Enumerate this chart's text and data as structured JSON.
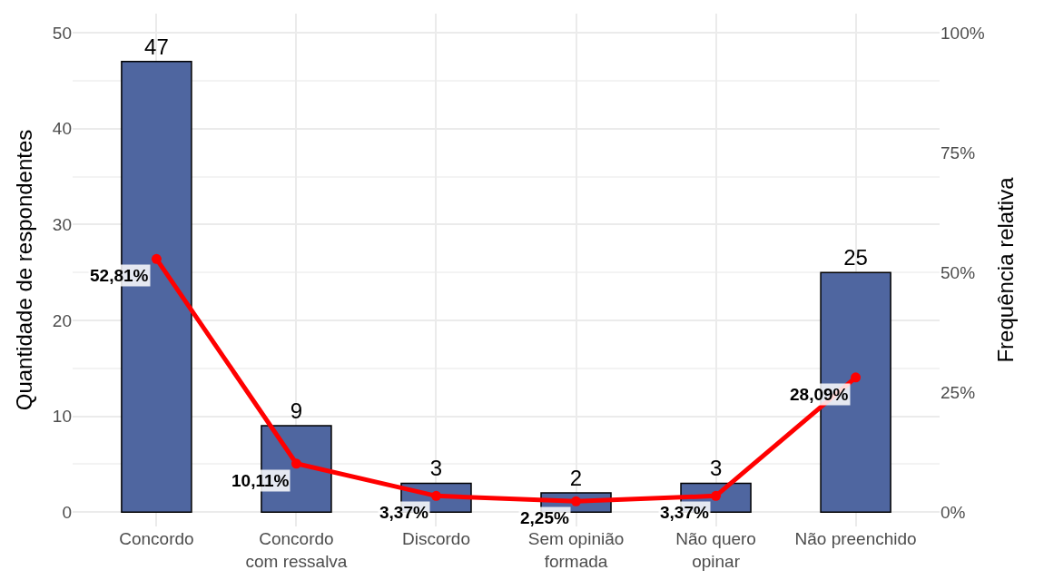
{
  "chart_data": {
    "type": "bar",
    "ylabel": "Quantidade de respondentes",
    "y2label": "Frequência relativa",
    "categories": [
      "Concordo",
      "Concordo\ncom ressalva",
      "Discordo",
      "Sem opinião\nformada",
      "Não quero\nopinar",
      "Não preenchido"
    ],
    "series": [
      {
        "color": "#4f66a0",
        "values": [
          47,
          9,
          3,
          2,
          3,
          25
        ],
        "data_labels": true
      },
      {
        "type": "line",
        "axis": "y2",
        "color": "#ff0000",
        "marker": "circle",
        "line_style": "solid",
        "values": [
          52.81,
          10.11,
          3.37,
          2.25,
          3.37,
          28.09
        ],
        "value_labels": [
          "52,81%",
          "10,11%",
          "3,37%",
          "2,25%",
          "3,37%",
          "28,09%"
        ]
      }
    ],
    "ylim": [
      -1.5,
      52
    ],
    "yticks": [
      0,
      10,
      20,
      30,
      40,
      50
    ],
    "y2lim": [
      -3,
      104
    ],
    "y2ticks": [
      {
        "value": 0,
        "label": "0%"
      },
      {
        "value": 25,
        "label": "25%"
      },
      {
        "value": 50,
        "label": "50%"
      },
      {
        "value": 75,
        "label": "75%"
      },
      {
        "value": 100,
        "label": "100%"
      }
    ],
    "grid": true
  }
}
